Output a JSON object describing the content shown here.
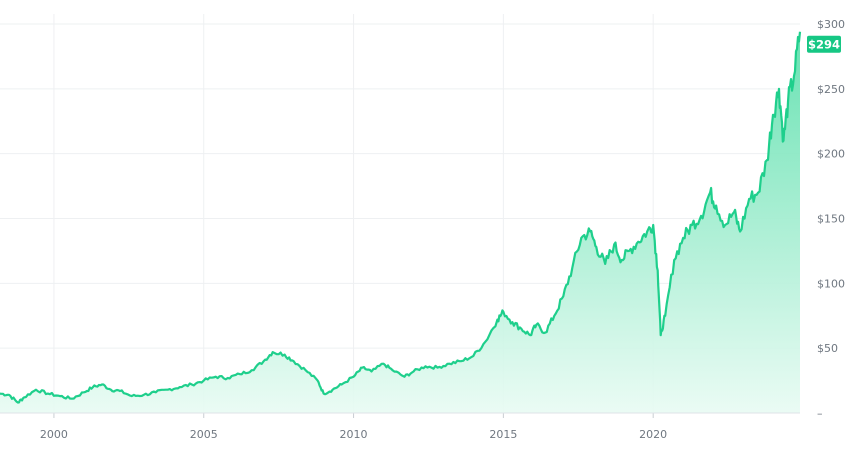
{
  "chart_data": {
    "type": "area",
    "title": "",
    "xlabel": "",
    "ylabel": "",
    "xlim": [
      1998.2,
      2024.9
    ],
    "ylim": [
      0,
      300
    ],
    "x_ticks": [
      {
        "value": 2000,
        "label": "2000"
      },
      {
        "value": 2005,
        "label": "2005"
      },
      {
        "value": 2010,
        "label": "2010"
      },
      {
        "value": 2015,
        "label": "2015"
      },
      {
        "value": 2020,
        "label": "2020"
      }
    ],
    "y_ticks": [
      {
        "value": 300,
        "label": "$300"
      },
      {
        "value": 250,
        "label": "$250"
      },
      {
        "value": 200,
        "label": "$200"
      },
      {
        "value": 150,
        "label": "$150"
      },
      {
        "value": 100,
        "label": "$100"
      },
      {
        "value": 50,
        "label": "$50"
      },
      {
        "value": 0,
        "label": "–"
      }
    ],
    "grid": true,
    "last_value_label": "$294",
    "colors": {
      "line": "#1fcf8c",
      "fill_top": "#5fe0ae",
      "fill_bottom": "#e8fbf3",
      "badge": "#16c784"
    },
    "series": [
      {
        "x": [
          1998.2,
          1998.5,
          1998.8,
          1999.0,
          1999.4,
          1999.8,
          2000.2,
          2000.6,
          2001.0,
          2001.3,
          2001.6,
          2001.9,
          2002.2,
          2002.6,
          2003.0,
          2003.4,
          2003.8,
          2004.2,
          2004.6,
          2005.0,
          2005.4,
          2005.8,
          2006.2,
          2006.6,
          2007.0,
          2007.3,
          2007.7,
          2008.0,
          2008.4,
          2008.8,
          2009.0,
          2009.3,
          2009.6,
          2010.0,
          2010.3,
          2010.6,
          2011.0,
          2011.3,
          2011.7,
          2012.0,
          2012.4,
          2012.8,
          2013.2,
          2013.6,
          2014.0,
          2014.4,
          2014.8,
          2015.0,
          2015.3,
          2015.6,
          2015.9,
          2016.1,
          2016.4,
          2016.7,
          2017.0,
          2017.3,
          2017.6,
          2017.9,
          2018.1,
          2018.4,
          2018.7,
          2018.95,
          2019.2,
          2019.5,
          2019.8,
          2020.0,
          2020.15,
          2020.25,
          2020.4,
          2020.7,
          2021.0,
          2021.3,
          2021.6,
          2021.9,
          2022.1,
          2022.4,
          2022.7,
          2022.9,
          2023.2,
          2023.5,
          2023.8,
          2024.0,
          2024.2,
          2024.35,
          2024.5,
          2024.7,
          2024.9
        ],
        "y": [
          15,
          14,
          8,
          12,
          18,
          15,
          13,
          11,
          16,
          20,
          22,
          18,
          17,
          13,
          14,
          16,
          18,
          20,
          22,
          25,
          28,
          27,
          30,
          33,
          40,
          47,
          45,
          40,
          33,
          25,
          15,
          18,
          22,
          28,
          35,
          32,
          38,
          33,
          28,
          32,
          36,
          35,
          38,
          40,
          44,
          55,
          72,
          78,
          70,
          65,
          60,
          68,
          62,
          75,
          90,
          112,
          135,
          140,
          128,
          115,
          130,
          118,
          125,
          132,
          140,
          145,
          110,
          60,
          75,
          118,
          135,
          145,
          152,
          170,
          160,
          145,
          155,
          140,
          165,
          170,
          195,
          230,
          250,
          210,
          240,
          260,
          294
        ]
      }
    ]
  }
}
